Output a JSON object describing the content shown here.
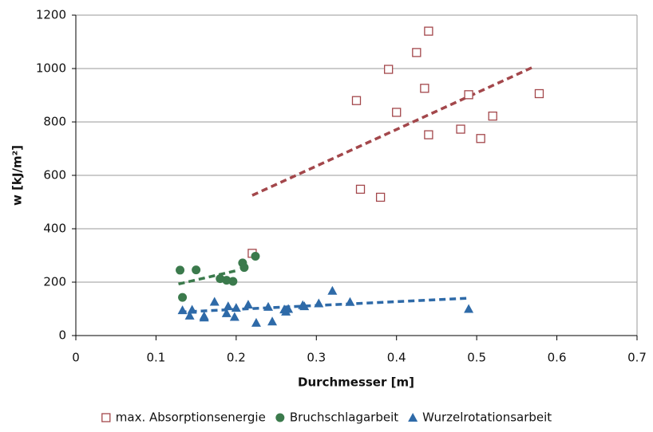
{
  "chart_data": {
    "type": "scatter",
    "xlabel": "Durchmesser [m]",
    "ylabel": "w [kJ/m²]",
    "xlim": [
      0,
      0.7
    ],
    "xticks": [
      0,
      0.1,
      0.2,
      0.3,
      0.4,
      0.5,
      0.6,
      0.7
    ],
    "ylim": [
      0,
      1200
    ],
    "yticks": [
      0,
      200,
      400,
      600,
      800,
      1000,
      1200
    ],
    "grid": true,
    "legend": "bottom",
    "series": [
      {
        "name": "max. Absorptionsenergie",
        "color": "#a3474b",
        "marker": "square",
        "x": [
          0.22,
          0.35,
          0.355,
          0.38,
          0.39,
          0.4,
          0.425,
          0.435,
          0.44,
          0.44,
          0.48,
          0.49,
          0.505,
          0.52,
          0.578
        ],
        "values": [
          308,
          880,
          548,
          518,
          997,
          836,
          1060,
          926,
          1140,
          752,
          773,
          902,
          738,
          822,
          906
        ],
        "trend": {
          "x": [
            0.22,
            0.57
          ],
          "values": [
            525,
            1005
          ]
        }
      },
      {
        "name": "Bruchschlagarbeit",
        "color": "#3b7a4c",
        "marker": "circle",
        "x": [
          0.13,
          0.133,
          0.15,
          0.18,
          0.188,
          0.196,
          0.208,
          0.21,
          0.224
        ],
        "values": [
          245,
          143,
          246,
          213,
          207,
          203,
          272,
          255,
          297
        ],
        "trend": {
          "x": [
            0.128,
            0.2
          ],
          "values": [
            193,
            243
          ]
        }
      },
      {
        "name": "Wurzelrotationsarbeit",
        "color": "#2e6aa8",
        "marker": "triangle",
        "x": [
          0.133,
          0.142,
          0.145,
          0.16,
          0.16,
          0.173,
          0.188,
          0.19,
          0.198,
          0.2,
          0.215,
          0.225,
          0.24,
          0.245,
          0.26,
          0.262,
          0.265,
          0.283,
          0.285,
          0.303,
          0.32,
          0.342,
          0.49
        ],
        "values": [
          95,
          75,
          97,
          73,
          68,
          127,
          84,
          110,
          70,
          104,
          116,
          48,
          108,
          53,
          98,
          90,
          100,
          114,
          110,
          121,
          168,
          126,
          100
        ],
        "trend": {
          "x": [
            0.13,
            0.49
          ],
          "values": [
            88,
            140
          ]
        }
      }
    ]
  }
}
